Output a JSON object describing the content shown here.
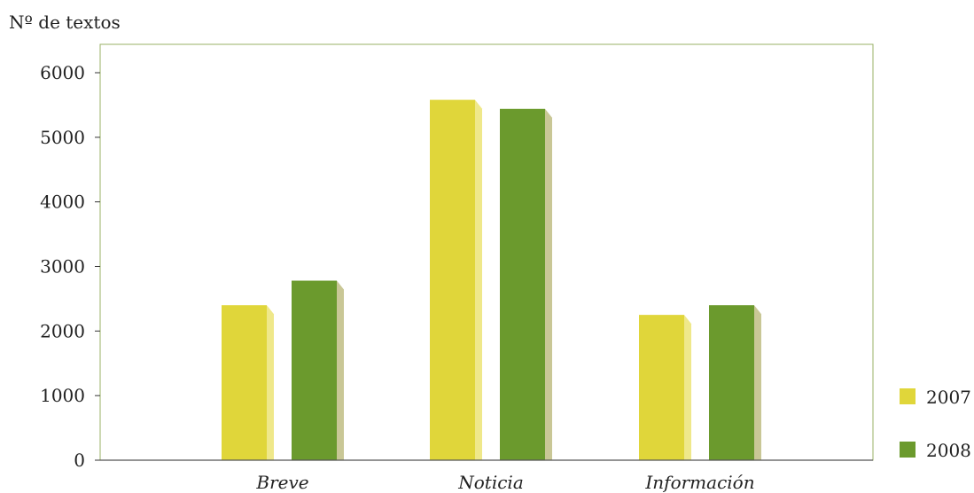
{
  "chart_data": {
    "type": "bar",
    "ylabel": "Nº de textos",
    "categories": [
      "Breve",
      "Noticia",
      "Información"
    ],
    "series": [
      {
        "name": "2007",
        "values": [
          2400,
          5580,
          2250
        ],
        "color": "#e0d63a",
        "side_color": "#efe88a"
      },
      {
        "name": "2008",
        "values": [
          2780,
          5440,
          2400
        ],
        "color": "#6b9a2d",
        "side_color": "#c9c796"
      }
    ],
    "ylim": [
      0,
      6000
    ],
    "yticks": [
      0,
      1000,
      2000,
      3000,
      4000,
      5000,
      6000
    ],
    "frame_color": "#9ab066",
    "grid": false,
    "legend_position": "bottom-right"
  }
}
